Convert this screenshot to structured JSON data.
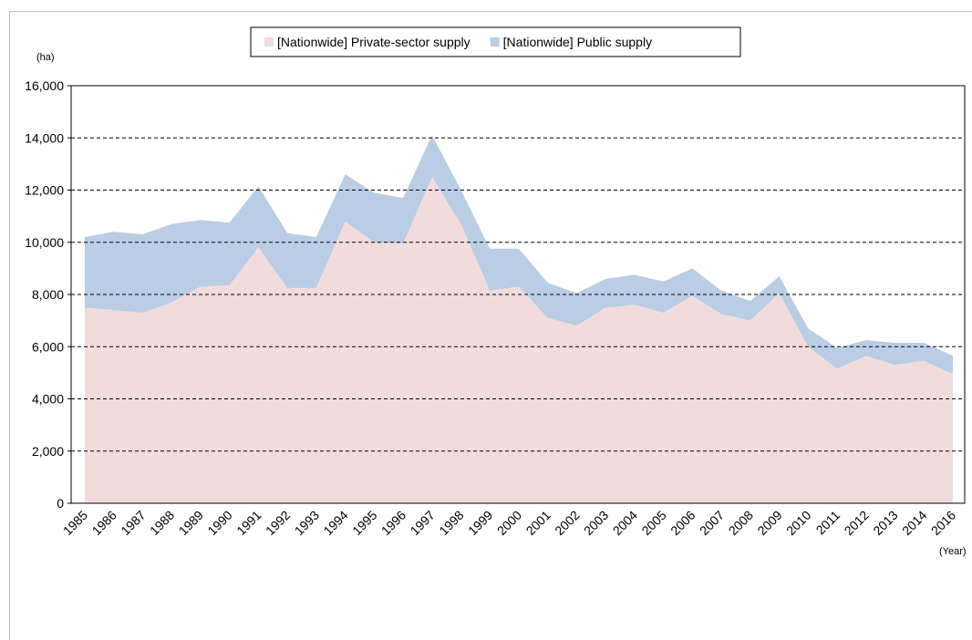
{
  "chart_data": {
    "type": "stacked-area",
    "y_unit": "(ha)",
    "x_unit": "(Year)",
    "categories": [
      "1985",
      "1986",
      "1987",
      "1988",
      "1989",
      "1990",
      "1991",
      "1992",
      "1993",
      "1994",
      "1995",
      "1996",
      "1997",
      "1998",
      "1999",
      "2000",
      "2001",
      "2002",
      "2003",
      "2004",
      "2005",
      "2006",
      "2007",
      "2008",
      "2009",
      "2010",
      "2011",
      "2012",
      "2013",
      "2014",
      "2016"
    ],
    "series": [
      {
        "name": "[Nationwide] Private-sector supply",
        "color": "#f2dcdb",
        "values": [
          7500,
          7400,
          7300,
          7700,
          8300,
          8350,
          9800,
          8250,
          8250,
          10800,
          10000,
          9950,
          12500,
          10700,
          8150,
          8300,
          7100,
          6800,
          7500,
          7600,
          7300,
          7950,
          7250,
          7000,
          8050,
          6000,
          5150,
          5650,
          5300,
          5450,
          4950
        ]
      },
      {
        "name": "[Nationwide] Public supply",
        "color": "#b9cde5",
        "values": [
          2700,
          3000,
          3000,
          3000,
          2550,
          2400,
          2350,
          2100,
          1950,
          1800,
          1900,
          1750,
          1600,
          1300,
          1600,
          1450,
          1350,
          1250,
          1100,
          1150,
          1200,
          1050,
          900,
          750,
          650,
          700,
          800,
          600,
          850,
          700,
          700
        ]
      }
    ],
    "ylim": [
      0,
      16000
    ],
    "yticks": [
      0,
      {
        "value": 2000,
        "label": "2,000"
      },
      {
        "value": 4000,
        "label": "4,000"
      },
      {
        "value": 6000,
        "label": "6,000"
      },
      {
        "value": 8000,
        "label": "8,000"
      },
      {
        "value": 10000,
        "label": "10,000"
      },
      {
        "value": 12000,
        "label": "12,000"
      },
      {
        "value": 14000,
        "label": "14,000"
      },
      {
        "value": 16000,
        "label": "16,000"
      }
    ],
    "grid": true,
    "legend": "top"
  }
}
